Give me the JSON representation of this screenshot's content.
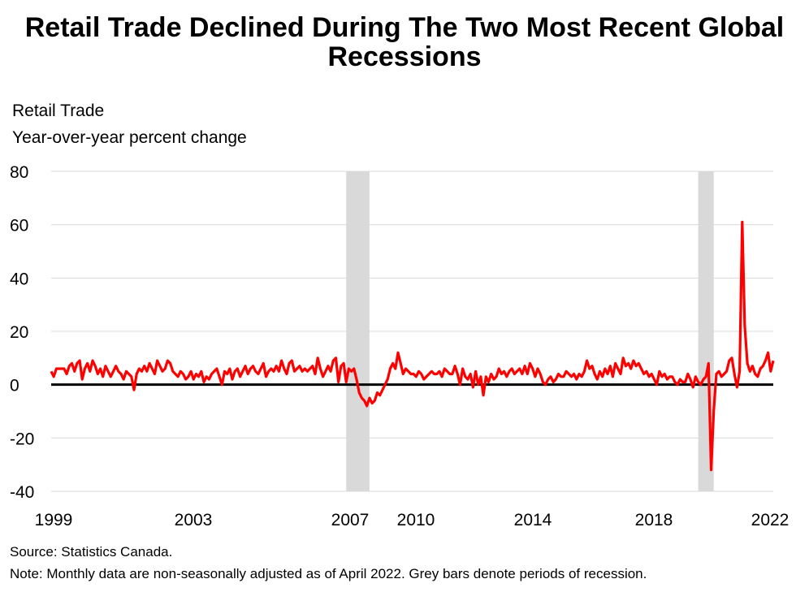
{
  "chart_data": {
    "type": "line",
    "title": "Retail Trade Declined During The Two Most Recent Global Recessions",
    "subtitle": [
      "Retail Trade",
      "Year-over-year percent change"
    ],
    "xlabel": "",
    "ylabel": "",
    "ylim": [
      -40,
      80
    ],
    "yticks": [
      "80",
      "60",
      "40",
      "20",
      "0",
      "-20",
      "-40"
    ],
    "xticks": [
      "1999",
      "2003",
      "2007",
      "2010",
      "2014",
      "2018",
      "2022"
    ],
    "x_start": "1999-01",
    "x_end": "2022-04",
    "frequency": "monthly",
    "grid": "horizontal",
    "line_color": "#ff0000",
    "recession_color": "#d9d9d9",
    "recessions": [
      {
        "start": "2008-07",
        "end": "2009-04"
      },
      {
        "start": "2019-11",
        "end": "2020-05"
      }
    ],
    "values": [
      5,
      3,
      6,
      6,
      6,
      6,
      4,
      7,
      8,
      5,
      8,
      9,
      2,
      6,
      8,
      5,
      9,
      7,
      4,
      6,
      3,
      7,
      5,
      3,
      5,
      7,
      5,
      4,
      2,
      5,
      4,
      3,
      -2,
      4,
      6,
      5,
      7,
      5,
      8,
      6,
      4,
      9,
      7,
      5,
      6,
      9,
      8,
      5,
      4,
      3,
      5,
      4,
      2,
      3,
      5,
      2,
      4,
      3,
      5,
      1,
      3,
      2,
      4,
      5,
      6,
      3,
      0,
      5,
      4,
      6,
      2,
      5,
      6,
      3,
      5,
      7,
      4,
      6,
      7,
      5,
      4,
      6,
      8,
      3,
      5,
      6,
      5,
      7,
      5,
      9,
      6,
      4,
      8,
      9,
      5,
      6,
      7,
      5,
      6,
      5,
      6,
      7,
      4,
      10,
      6,
      3,
      5,
      7,
      5,
      9,
      10,
      1,
      7,
      8,
      1,
      6,
      5,
      6,
      2,
      -3,
      -5,
      -6,
      -8,
      -5,
      -7,
      -6,
      -3,
      -4,
      -2,
      0,
      2,
      6,
      8,
      6,
      12,
      8,
      4,
      6,
      5,
      4,
      4,
      3,
      5,
      4,
      2,
      3,
      4,
      5,
      4,
      4,
      5,
      3,
      6,
      5,
      4,
      4,
      7,
      4,
      0,
      6,
      3,
      2,
      4,
      -1,
      5,
      0,
      3,
      -4,
      3,
      1,
      4,
      2,
      3,
      6,
      4,
      5,
      3,
      5,
      6,
      4,
      5,
      6,
      4,
      7,
      4,
      8,
      6,
      3,
      6,
      4,
      1,
      0,
      2,
      3,
      1,
      2,
      4,
      3,
      3,
      5,
      4,
      3,
      4,
      2,
      4,
      3,
      5,
      9,
      6,
      7,
      4,
      2,
      5,
      3,
      6,
      4,
      7,
      3,
      8,
      6,
      4,
      10,
      7,
      8,
      6,
      9,
      7,
      8,
      6,
      4,
      5,
      3,
      4,
      2,
      0,
      5,
      3,
      4,
      2,
      3,
      3,
      1,
      0,
      2,
      1,
      1,
      4,
      2,
      -1,
      3,
      1,
      0,
      2,
      3,
      8,
      -32,
      -10,
      4,
      5,
      3,
      4,
      5,
      9,
      10,
      4,
      -1,
      5,
      61,
      22,
      8,
      5,
      7,
      4,
      3,
      6,
      7,
      9,
      12,
      5,
      9
    ]
  },
  "notes": {
    "source": "Source: Statistics Canada.",
    "note": "Note: Monthly data are non-seasonally adjusted as of April 2022. Grey bars denote periods of recession."
  }
}
